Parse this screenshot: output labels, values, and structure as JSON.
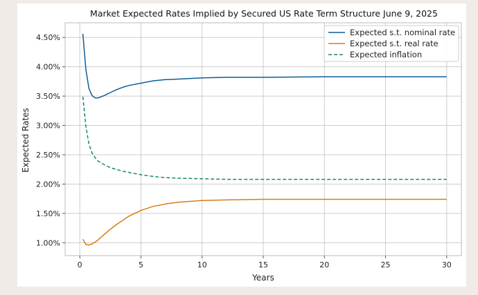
{
  "chart_data": {
    "type": "line",
    "title": "Market Expected Rates Implied by Secured US Rate Term Structure June 9, 2025",
    "xlabel": "Years",
    "ylabel": "Expected Rates",
    "xlim": [
      -1.2,
      31.2
    ],
    "ylim": [
      0.0078,
      0.0475
    ],
    "x_ticks": [
      0,
      5,
      10,
      15,
      20,
      25,
      30
    ],
    "x_tick_labels": [
      "0",
      "5",
      "10",
      "15",
      "20",
      "25",
      "30"
    ],
    "y_ticks": [
      0.01,
      0.015,
      0.02,
      0.025,
      0.03,
      0.035,
      0.04,
      0.045
    ],
    "y_tick_labels": [
      "1.00%",
      "1.50%",
      "2.00%",
      "2.50%",
      "3.00%",
      "3.50%",
      "4.00%",
      "4.50%"
    ],
    "grid": true,
    "legend_position": "top-right",
    "series": [
      {
        "name": "Expected s.t. nominal rate",
        "color": "#0b5c96",
        "style": "solid",
        "x": [
          0.25,
          0.5,
          0.75,
          1,
          1.25,
          1.5,
          2,
          2.5,
          3,
          3.5,
          4,
          5,
          6,
          7,
          8,
          10,
          12,
          15,
          20,
          25,
          30
        ],
        "y": [
          0.0456,
          0.0395,
          0.0363,
          0.0351,
          0.0347,
          0.0347,
          0.0351,
          0.0356,
          0.0361,
          0.0365,
          0.0368,
          0.0372,
          0.0376,
          0.0378,
          0.0379,
          0.0381,
          0.0382,
          0.0382,
          0.0383,
          0.0383,
          0.0383
        ]
      },
      {
        "name": "Expected s.t. real rate",
        "color": "#d97b15",
        "style": "solid",
        "x": [
          0.25,
          0.5,
          0.75,
          1,
          1.25,
          1.5,
          2,
          2.5,
          3,
          3.5,
          4,
          5,
          6,
          7,
          8,
          10,
          12,
          15,
          20,
          25,
          30
        ],
        "y": [
          0.0106,
          0.0097,
          0.0096,
          0.0098,
          0.0101,
          0.0105,
          0.0114,
          0.0123,
          0.0131,
          0.0138,
          0.0145,
          0.0155,
          0.0162,
          0.0166,
          0.0169,
          0.0172,
          0.0173,
          0.0174,
          0.0174,
          0.0174,
          0.0174
        ]
      },
      {
        "name": "Expected inflation",
        "color": "#16896a",
        "style": "dashed",
        "x": [
          0.25,
          0.5,
          0.75,
          1,
          1.25,
          1.5,
          2,
          2.5,
          3,
          3.5,
          4,
          5,
          6,
          7,
          8,
          10,
          12,
          15,
          20,
          25,
          30
        ],
        "y": [
          0.0349,
          0.0298,
          0.0268,
          0.0253,
          0.0245,
          0.0239,
          0.0233,
          0.0228,
          0.0225,
          0.0222,
          0.022,
          0.0216,
          0.0213,
          0.0211,
          0.021,
          0.0209,
          0.0208,
          0.0208,
          0.0208,
          0.0208,
          0.0208
        ]
      }
    ]
  }
}
